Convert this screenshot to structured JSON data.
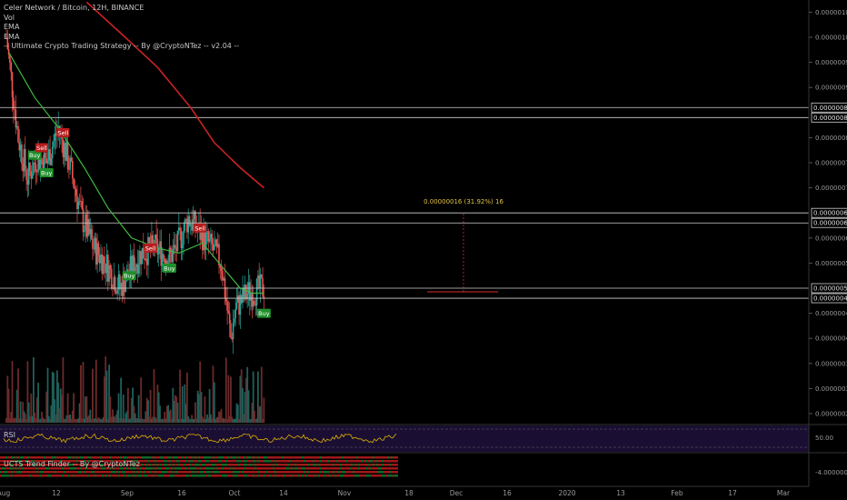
{
  "header": {
    "title": "Celer Network / Bitcoin, 12H, BINANCE",
    "indicators": [
      "Vol",
      "EMA",
      "EMA",
      "-- Ultimate Crypto Trading Strategy -- By @CryptoNTez -- v2.04 --"
    ]
  },
  "panes": {
    "rsi_label": "RSI",
    "ucts_label": "UCTS Trend Finder -- By @CryptoNTez"
  },
  "price_axis": {
    "ticks": [
      "0.00000105",
      "0.00000100",
      "0.00000095",
      "0.00000090",
      "0.00000080",
      "0.00000075",
      "0.00000070",
      "0.00000060",
      "0.00000055",
      "0.00000045",
      "0.00000040",
      "0.00000035",
      "0.00000030",
      "0.00000025"
    ],
    "boxed": [
      "0.00000086",
      "0.00000084",
      "0.00000065",
      "0.00000063",
      "0.00000050",
      "0.00000048"
    ]
  },
  "rsi_axis": {
    "label": "50.00"
  },
  "ucts_axis": {
    "label": "-4.00000000"
  },
  "time_axis": {
    "ticks": [
      "Aug",
      "12",
      "Sep",
      "16",
      "Oct",
      "14",
      "Nov",
      "18",
      "Dec",
      "16",
      "2020",
      "13",
      "Feb",
      "17",
      "Mar"
    ]
  },
  "measure": {
    "label": "0.00000016 (31.92%) 16"
  },
  "colors": {
    "bull": "#26a69a",
    "bear": "#ef5350",
    "ema_fast": "#3fb83f",
    "ema_slow": "#cc2222",
    "buy_tag": "#1f8f2b",
    "sell_tag": "#b71c1c",
    "rsi_line": "#e0b000",
    "rsi_bg": "#1a0f33"
  },
  "chart_data": {
    "type": "candlestick",
    "title": "Celer Network / Bitcoin, 12H, BINANCE",
    "yrange": [
      2.3e-07,
      1.07e-06
    ],
    "horizontal_levels": [
      8.6e-07,
      8.4e-07,
      6.5e-07,
      6.3e-07,
      5e-07,
      4.8e-07
    ],
    "signals": [
      {
        "label": "Buy",
        "date": "2019-08-10",
        "price": 7.65e-07
      },
      {
        "label": "Sell",
        "date": "2019-08-13",
        "price": 7.8e-07
      },
      {
        "label": "Buy",
        "date": "2019-08-15",
        "price": 7.3e-07
      },
      {
        "label": "Sell",
        "date": "2019-08-22",
        "price": 8.1e-07
      },
      {
        "label": "Buy",
        "date": "2019-09-19",
        "price": 5.25e-07
      },
      {
        "label": "Sell",
        "date": "2019-09-28",
        "price": 5.8e-07
      },
      {
        "label": "Buy",
        "date": "2019-10-06",
        "price": 5.4e-07
      },
      {
        "label": "Sell",
        "date": "2019-10-19",
        "price": 6.2e-07
      },
      {
        "label": "Buy",
        "date": "2019-11-15",
        "price": 4.5e-07
      }
    ],
    "price_path": [
      [
        "2019-07-29",
        1e-06
      ],
      [
        "2019-08-03",
        8e-07
      ],
      [
        "2019-08-07",
        7.2e-07
      ],
      [
        "2019-08-11",
        7.6e-07
      ],
      [
        "2019-08-15",
        7.5e-07
      ],
      [
        "2019-08-20",
        8.2e-07
      ],
      [
        "2019-08-25",
        7.4e-07
      ],
      [
        "2019-08-30",
        6.4e-07
      ],
      [
        "2019-09-04",
        5.8e-07
      ],
      [
        "2019-09-09",
        5.5e-07
      ],
      [
        "2019-09-15",
        5e-07
      ],
      [
        "2019-09-20",
        5.4e-07
      ],
      [
        "2019-09-24",
        5.7e-07
      ],
      [
        "2019-09-30",
        5.8e-07
      ],
      [
        "2019-10-06",
        5.6e-07
      ],
      [
        "2019-10-09",
        5.8e-07
      ],
      [
        "2019-10-14",
        6.4e-07
      ],
      [
        "2019-10-19",
        6.1e-07
      ],
      [
        "2019-10-24",
        5.8e-07
      ],
      [
        "2019-10-28",
        5.5e-07
      ],
      [
        "2019-11-01",
        4e-07
      ],
      [
        "2019-11-03",
        4.6e-07
      ],
      [
        "2019-11-08",
        4.9e-07
      ],
      [
        "2019-11-15",
        5e-07
      ]
    ],
    "ema_fast": [
      [
        "2019-07-30",
        9.7e-07
      ],
      [
        "2019-08-10",
        8.8e-07
      ],
      [
        "2019-08-20",
        8.2e-07
      ],
      [
        "2019-08-31",
        7.4e-07
      ],
      [
        "2019-09-10",
        6.6e-07
      ],
      [
        "2019-09-20",
        6e-07
      ],
      [
        "2019-10-01",
        5.8e-07
      ],
      [
        "2019-10-10",
        5.7e-07
      ],
      [
        "2019-10-20",
        5.9e-07
      ],
      [
        "2019-10-27",
        5.5e-07
      ],
      [
        "2019-11-05",
        5e-07
      ],
      [
        "2019-11-10",
        4.9e-07
      ],
      [
        "2019-11-15",
        4.9e-07
      ]
    ],
    "ema_slow": [
      [
        "2019-09-01",
        1.07e-06
      ],
      [
        "2019-09-15",
        1.01e-06
      ],
      [
        "2019-10-01",
        9.4e-07
      ],
      [
        "2019-10-15",
        8.6e-07
      ],
      [
        "2019-10-25",
        7.9e-07
      ],
      [
        "2019-11-05",
        7.4e-07
      ],
      [
        "2019-11-15",
        7e-07
      ]
    ],
    "measurement": {
      "from_price": 5e-07,
      "to_price": 6.5e-07,
      "change": 1.6e-07,
      "percent": 31.92,
      "bars": 16
    }
  }
}
